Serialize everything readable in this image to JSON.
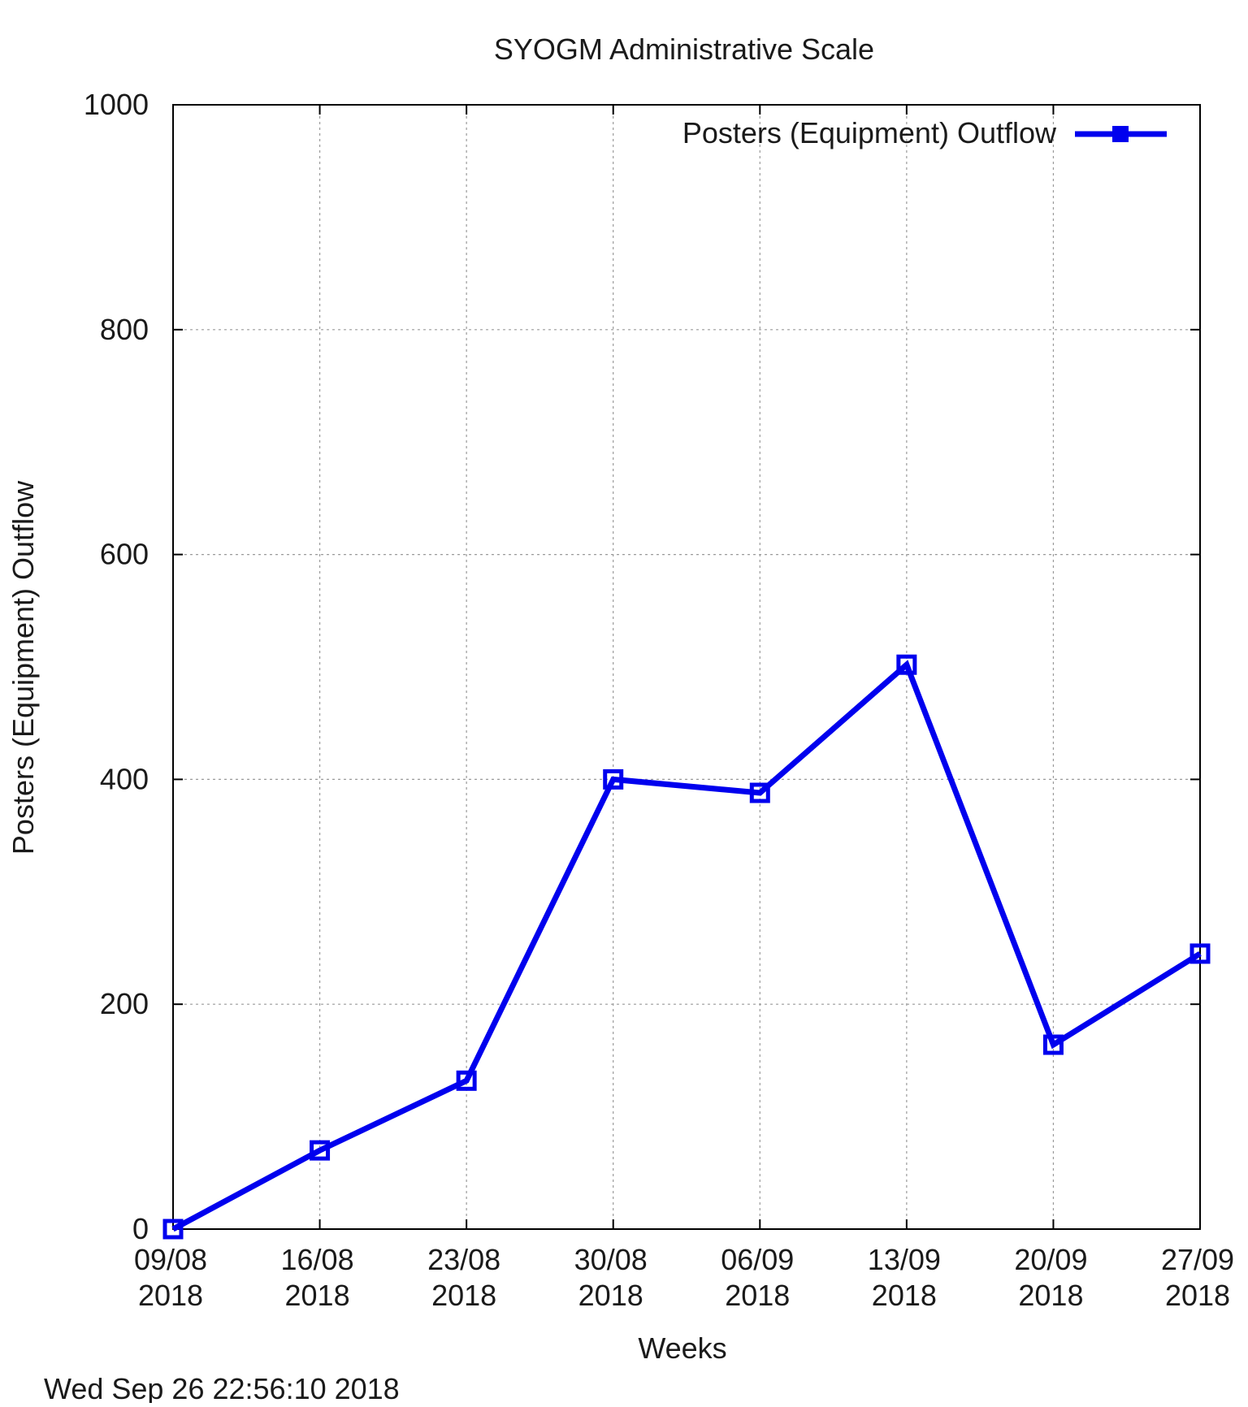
{
  "chart_data": {
    "type": "line",
    "title": "SYOGM Administrative Scale",
    "xlabel": "Weeks",
    "ylabel": "Posters (Equipment) Outflow",
    "x": [
      "09/08 2018",
      "16/08 2018",
      "23/08 2018",
      "30/08 2018",
      "06/09 2018",
      "13/09 2018",
      "20/09 2018",
      "27/09 2018"
    ],
    "x_ticks": [
      {
        "line1": "09/08",
        "line2": "2018"
      },
      {
        "line1": "16/08",
        "line2": "2018"
      },
      {
        "line1": "23/08",
        "line2": "2018"
      },
      {
        "line1": "30/08",
        "line2": "2018"
      },
      {
        "line1": "06/09",
        "line2": "2018"
      },
      {
        "line1": "13/09",
        "line2": "2018"
      },
      {
        "line1": "20/09",
        "line2": "2018"
      },
      {
        "line1": "27/09",
        "line2": "2018"
      }
    ],
    "series": [
      {
        "name": "Posters (Equipment) Outflow",
        "values": [
          0,
          70,
          132,
          400,
          388,
          502,
          164,
          245
        ],
        "color": "#0000ee",
        "marker": "square"
      }
    ],
    "ylim": [
      0,
      1000
    ],
    "y_ticks": [
      "0",
      "200",
      "400",
      "600",
      "800",
      "1000"
    ],
    "y_tick_values": [
      0,
      200,
      400,
      600,
      800,
      1000
    ],
    "grid": true,
    "legend_position": "top-right"
  },
  "footer": {
    "timestamp": "Wed Sep 26 22:56:10 2018"
  }
}
